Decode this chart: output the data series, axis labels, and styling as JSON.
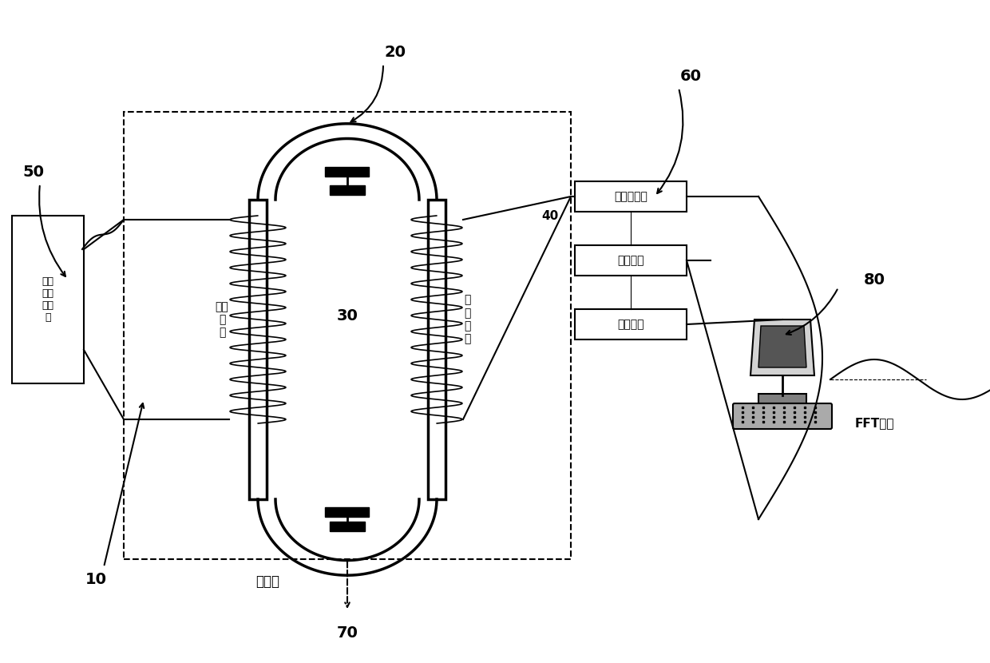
{
  "bg_color": "#ffffff",
  "label_10": "10",
  "label_20": "20",
  "label_30": "30",
  "label_40": "40",
  "label_50": "50",
  "label_60": "60",
  "label_70": "70",
  "label_80": "80",
  "box_jiapin": "交频\n电流\n发生\n器",
  "box_excite": "励磁\n线\n圈",
  "box_sense": "感\n应\n线\n圈",
  "box_signal": "信号采集板",
  "box_amp": "放大电路",
  "box_output": "输出端子",
  "label_henwen": "恒温筱",
  "label_fft": "FFT解析"
}
